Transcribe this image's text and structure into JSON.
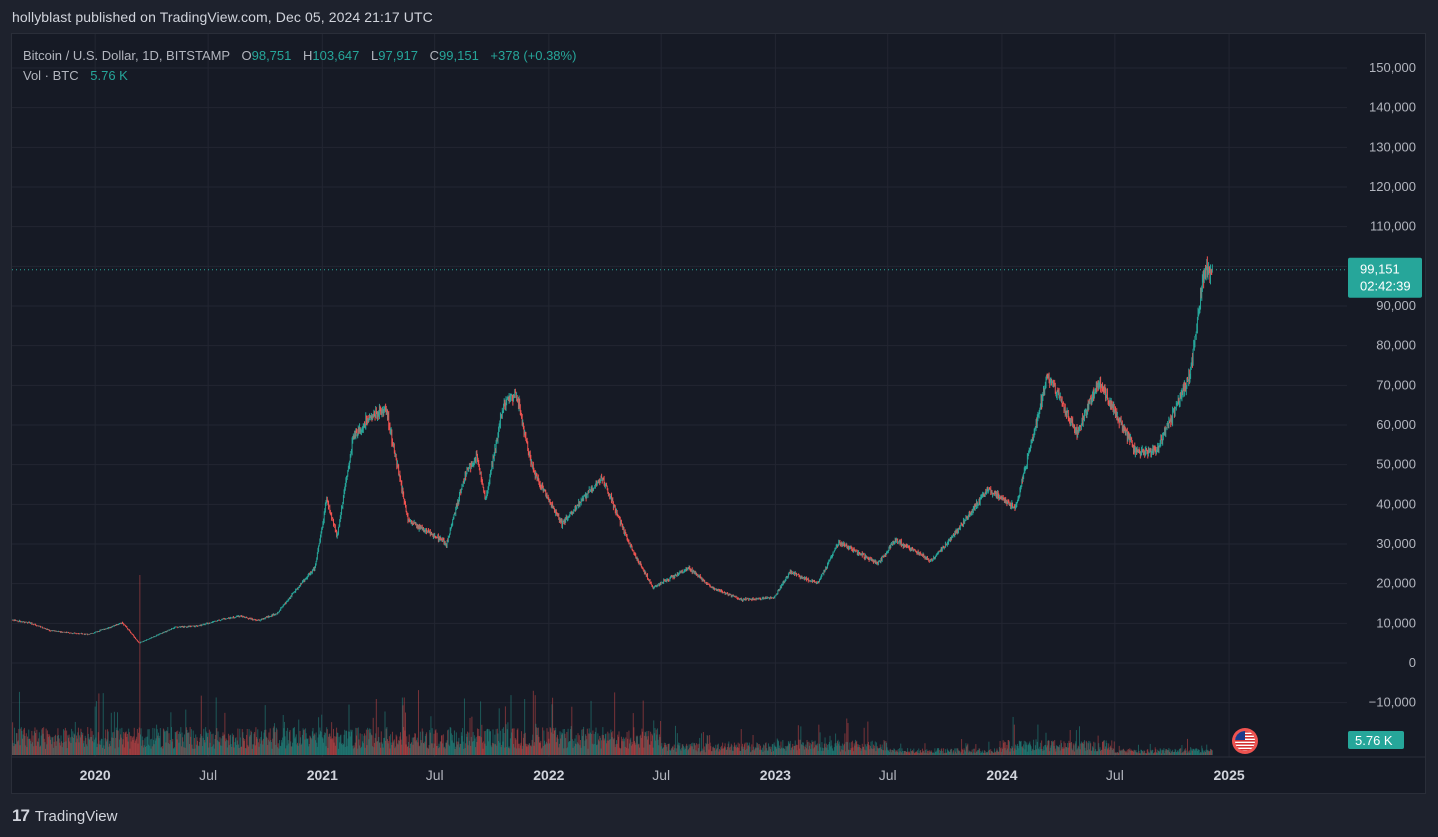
{
  "header": {
    "published_text": "hollyblast published on TradingView.com, Dec 05, 2024 21:17 UTC"
  },
  "legend": {
    "symbol": "Bitcoin / U.S. Dollar, 1D, BITSTAMP",
    "open_label": "O",
    "open_value": "98,751",
    "high_label": "H",
    "high_value": "103,647",
    "low_label": "L",
    "low_value": "97,917",
    "close_label": "C",
    "close_value": "99,151",
    "change": "+378 (+0.38%)",
    "volume_label": "Vol · BTC",
    "volume_value": "5.76 K"
  },
  "price_tag": {
    "price": "99,151",
    "countdown": "02:42:39"
  },
  "volume_tag": "5.76 K",
  "footer": {
    "brand": "TradingView",
    "logo_text": "17"
  },
  "colors": {
    "up": "#26a69a",
    "down": "#ef5350",
    "background": "#161a25",
    "grid": "#232632",
    "text": "#b2b5be"
  },
  "chart_data": {
    "type": "candlestick",
    "title": "Bitcoin / U.S. Dollar, 1D, BITSTAMP",
    "yaxis_ticks": [
      150000,
      140000,
      130000,
      120000,
      110000,
      100000,
      90000,
      80000,
      70000,
      60000,
      50000,
      40000,
      30000,
      20000,
      10000,
      0,
      -10000
    ],
    "yaxis_tick_labels": [
      "150,000",
      "140,000",
      "130,000",
      "120,000",
      "110,000",
      "",
      "90,000",
      "80,000",
      "70,000",
      "60,000",
      "50,000",
      "40,000",
      "30,000",
      "20,000",
      "10,000",
      "0",
      "−10,000"
    ],
    "ylim": [
      -20000,
      155000
    ],
    "xaxis_ticks": [
      "2020",
      "Jul",
      "2021",
      "Jul",
      "2022",
      "Jul",
      "2023",
      "Jul",
      "2024",
      "Jul",
      "2025"
    ],
    "xaxis_tick_dates": [
      "2020-01-01",
      "2020-07-01",
      "2021-01-01",
      "2021-07-01",
      "2022-01-01",
      "2022-07-01",
      "2023-01-01",
      "2023-07-01",
      "2024-01-01",
      "2024-07-01",
      "2025-01-01"
    ],
    "xlim": [
      "2019-08-20",
      "2025-07-10"
    ],
    "last_price": 99151,
    "price_path": [
      [
        "2019-08-20",
        10800
      ],
      [
        "2019-09-20",
        10000
      ],
      [
        "2019-10-20",
        8200
      ],
      [
        "2019-11-20",
        7600
      ],
      [
        "2019-12-20",
        7200
      ],
      [
        "2020-01-20",
        8700
      ],
      [
        "2020-02-14",
        10200
      ],
      [
        "2020-03-12",
        5000
      ],
      [
        "2020-04-10",
        7000
      ],
      [
        "2020-05-10",
        9000
      ],
      [
        "2020-06-15",
        9400
      ],
      [
        "2020-07-25",
        11000
      ],
      [
        "2020-08-20",
        11800
      ],
      [
        "2020-09-20",
        10700
      ],
      [
        "2020-10-20",
        12500
      ],
      [
        "2020-11-20",
        18500
      ],
      [
        "2020-12-20",
        24000
      ],
      [
        "2021-01-08",
        41000
      ],
      [
        "2021-01-25",
        32000
      ],
      [
        "2021-02-20",
        57000
      ],
      [
        "2021-03-13",
        61000
      ],
      [
        "2021-04-14",
        64000
      ],
      [
        "2021-05-19",
        36000
      ],
      [
        "2021-06-20",
        33000
      ],
      [
        "2021-07-20",
        30000
      ],
      [
        "2021-08-20",
        48000
      ],
      [
        "2021-09-07",
        52000
      ],
      [
        "2021-09-21",
        41000
      ],
      [
        "2021-10-20",
        65000
      ],
      [
        "2021-11-10",
        68000
      ],
      [
        "2021-12-05",
        49000
      ],
      [
        "2022-01-22",
        35000
      ],
      [
        "2022-03-28",
        47000
      ],
      [
        "2022-05-10",
        30000
      ],
      [
        "2022-06-18",
        19000
      ],
      [
        "2022-08-15",
        24000
      ],
      [
        "2022-09-20",
        19000
      ],
      [
        "2022-11-09",
        16000
      ],
      [
        "2022-12-30",
        16500
      ],
      [
        "2023-01-25",
        23000
      ],
      [
        "2023-03-10",
        20000
      ],
      [
        "2023-04-14",
        30500
      ],
      [
        "2023-06-15",
        25000
      ],
      [
        "2023-07-13",
        31000
      ],
      [
        "2023-09-10",
        25800
      ],
      [
        "2023-10-25",
        34000
      ],
      [
        "2023-12-10",
        44000
      ],
      [
        "2024-01-23",
        39000
      ],
      [
        "2024-02-28",
        62000
      ],
      [
        "2024-03-14",
        73000
      ],
      [
        "2024-05-01",
        58000
      ],
      [
        "2024-06-05",
        71000
      ],
      [
        "2024-08-05",
        53000
      ],
      [
        "2024-09-06",
        53500
      ],
      [
        "2024-10-29",
        72000
      ],
      [
        "2024-11-22",
        99000
      ],
      [
        "2024-12-05",
        99151
      ]
    ],
    "volume_scale_k": 60,
    "last_volume": "5.76 K"
  }
}
